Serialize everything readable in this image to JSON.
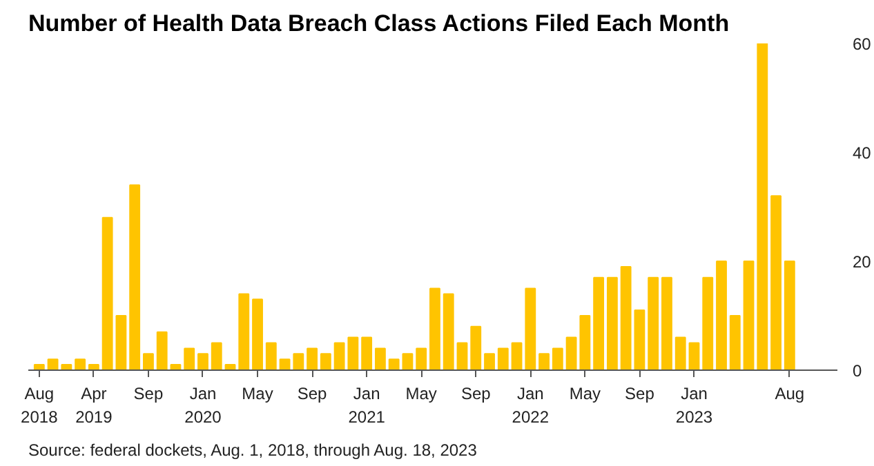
{
  "chart_data": {
    "type": "bar",
    "title": "Number of Health Data Breach Class Actions Filed Each Month",
    "categories": [
      "Aug\n2018",
      null,
      null,
      null,
      "Apr\n2019",
      null,
      null,
      null,
      "Sep",
      null,
      null,
      null,
      "Jan\n2020",
      null,
      null,
      null,
      "May",
      null,
      null,
      null,
      "Sep",
      null,
      null,
      null,
      "Jan\n2021",
      null,
      null,
      null,
      "May",
      null,
      null,
      null,
      "Sep",
      null,
      null,
      null,
      "Jan\n2022",
      null,
      null,
      null,
      "May",
      null,
      null,
      null,
      "Sep",
      null,
      null,
      null,
      "Jan\n2023",
      null,
      null,
      null,
      null,
      null,
      null,
      "Aug"
    ],
    "values": [
      1,
      2,
      1,
      2,
      1,
      28,
      10,
      34,
      3,
      7,
      1,
      4,
      3,
      5,
      1,
      14,
      13,
      5,
      2,
      3,
      4,
      3,
      5,
      6,
      6,
      4,
      2,
      3,
      4,
      15,
      14,
      5,
      8,
      3,
      4,
      5,
      15,
      3,
      4,
      6,
      10,
      17,
      17,
      19,
      11,
      17,
      17,
      6,
      5,
      17,
      20,
      10,
      20,
      60,
      32,
      20
    ],
    "color": "#ffc400",
    "ylim": [
      0,
      60
    ],
    "yticks": [
      0,
      20,
      40,
      60
    ],
    "grid": false,
    "annotations": [
      "Source: federal dockets, Aug. 1, 2018, through Aug. 18, 2023"
    ]
  }
}
